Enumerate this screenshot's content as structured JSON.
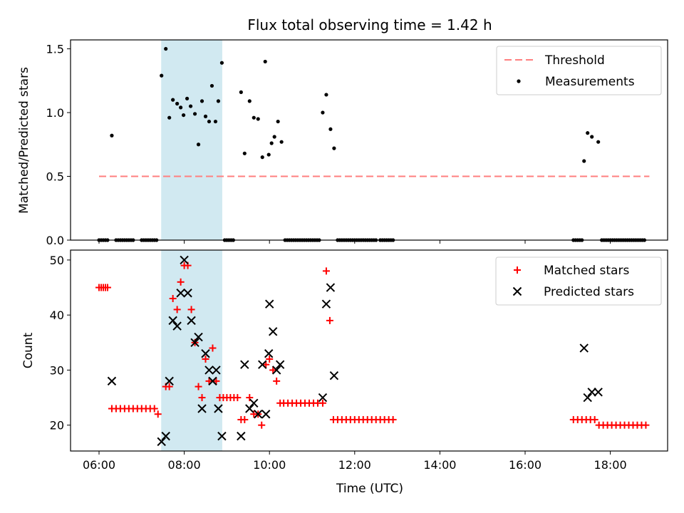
{
  "chart_data": {
    "title": "Flux total observing time = 1.42 h",
    "xlabel": "Time (UTC)",
    "x_tick_labels": [
      "06:00",
      "08:00",
      "10:00",
      "12:00",
      "14:00",
      "16:00",
      "18:00"
    ],
    "colors": {
      "threshold": "#ff7f7f",
      "measurements": "#000000",
      "matched": "#ff0000",
      "predicted": "#000000",
      "highlight_band": "#add8e6"
    },
    "charts": [
      {
        "type": "scatter",
        "ylabel": "Matched/Predicted stars",
        "ylim": [
          0,
          1.57
        ],
        "y_tick_labels": [
          "0.0",
          "0.5",
          "1.0",
          "1.5"
        ],
        "legend": [
          "Threshold",
          "Measurements"
        ],
        "legend_position": "top-right",
        "highlight": {
          "from": "07:28",
          "to": "08:53"
        },
        "threshold": {
          "value": 0.5,
          "from": "06:00",
          "to": "18:55"
        },
        "measurements": [
          [
            "06:00",
            0
          ],
          [
            "06:03",
            0
          ],
          [
            "06:06",
            0
          ],
          [
            "06:09",
            0
          ],
          [
            "06:12",
            0
          ],
          [
            "06:18",
            0.82
          ],
          [
            "06:24",
            0
          ],
          [
            "06:27",
            0
          ],
          [
            "06:30",
            0
          ],
          [
            "06:33",
            0
          ],
          [
            "06:36",
            0
          ],
          [
            "06:39",
            0
          ],
          [
            "06:42",
            0
          ],
          [
            "06:45",
            0
          ],
          [
            "06:48",
            0
          ],
          [
            "07:00",
            0
          ],
          [
            "07:03",
            0
          ],
          [
            "07:06",
            0
          ],
          [
            "07:09",
            0
          ],
          [
            "07:12",
            0
          ],
          [
            "07:15",
            0
          ],
          [
            "07:18",
            0
          ],
          [
            "07:21",
            0
          ],
          [
            "07:28",
            1.29
          ],
          [
            "07:34",
            1.5
          ],
          [
            "07:39",
            0.96
          ],
          [
            "07:44",
            1.1
          ],
          [
            "07:50",
            1.07
          ],
          [
            "07:55",
            1.04
          ],
          [
            "07:59",
            0.98
          ],
          [
            "08:04",
            1.11
          ],
          [
            "08:09",
            1.05
          ],
          [
            "08:15",
            0.99
          ],
          [
            "08:20",
            0.75
          ],
          [
            "08:25",
            1.09
          ],
          [
            "08:30",
            0.97
          ],
          [
            "08:35",
            0.93
          ],
          [
            "08:39",
            1.21
          ],
          [
            "08:44",
            0.93
          ],
          [
            "08:48",
            1.09
          ],
          [
            "08:53",
            1.39
          ],
          [
            "08:57",
            0
          ],
          [
            "09:00",
            0
          ],
          [
            "09:03",
            0
          ],
          [
            "09:06",
            0
          ],
          [
            "09:09",
            0
          ],
          [
            "09:20",
            1.16
          ],
          [
            "09:25",
            0.68
          ],
          [
            "09:32",
            1.09
          ],
          [
            "09:38",
            0.96
          ],
          [
            "09:44",
            0.95
          ],
          [
            "09:50",
            0.65
          ],
          [
            "09:54",
            1.4
          ],
          [
            "09:59",
            0.67
          ],
          [
            "10:03",
            0.76
          ],
          [
            "10:07",
            0.81
          ],
          [
            "10:12",
            0.93
          ],
          [
            "10:17",
            0.77
          ],
          [
            "10:22",
            0
          ],
          [
            "10:25",
            0
          ],
          [
            "10:28",
            0
          ],
          [
            "10:31",
            0
          ],
          [
            "10:34",
            0
          ],
          [
            "10:37",
            0
          ],
          [
            "10:40",
            0
          ],
          [
            "10:43",
            0
          ],
          [
            "10:46",
            0
          ],
          [
            "10:49",
            0
          ],
          [
            "10:52",
            0
          ],
          [
            "10:55",
            0
          ],
          [
            "10:58",
            0
          ],
          [
            "11:01",
            0
          ],
          [
            "11:04",
            0
          ],
          [
            "11:07",
            0
          ],
          [
            "11:10",
            0
          ],
          [
            "11:15",
            1.0
          ],
          [
            "11:20",
            1.14
          ],
          [
            "11:26",
            0.87
          ],
          [
            "11:31",
            0.72
          ],
          [
            "11:36",
            0
          ],
          [
            "11:39",
            0
          ],
          [
            "11:42",
            0
          ],
          [
            "11:45",
            0
          ],
          [
            "11:48",
            0
          ],
          [
            "11:51",
            0
          ],
          [
            "11:54",
            0
          ],
          [
            "11:57",
            0
          ],
          [
            "12:00",
            0
          ],
          [
            "12:03",
            0
          ],
          [
            "12:06",
            0
          ],
          [
            "12:09",
            0
          ],
          [
            "12:12",
            0
          ],
          [
            "12:15",
            0
          ],
          [
            "12:18",
            0
          ],
          [
            "12:21",
            0
          ],
          [
            "12:24",
            0
          ],
          [
            "12:27",
            0
          ],
          [
            "12:30",
            0
          ],
          [
            "12:36",
            0
          ],
          [
            "12:39",
            0
          ],
          [
            "12:42",
            0
          ],
          [
            "12:45",
            0
          ],
          [
            "12:48",
            0
          ],
          [
            "12:51",
            0
          ],
          [
            "12:54",
            0
          ],
          [
            "17:08",
            0
          ],
          [
            "17:11",
            0
          ],
          [
            "17:14",
            0
          ],
          [
            "17:17",
            0
          ],
          [
            "17:20",
            0
          ],
          [
            "17:23",
            0.62
          ],
          [
            "17:28",
            0.84
          ],
          [
            "17:34",
            0.81
          ],
          [
            "17:43",
            0.77
          ],
          [
            "17:48",
            0
          ],
          [
            "17:51",
            0
          ],
          [
            "17:54",
            0
          ],
          [
            "17:57",
            0
          ],
          [
            "18:00",
            0
          ],
          [
            "18:03",
            0
          ],
          [
            "18:06",
            0
          ],
          [
            "18:09",
            0
          ],
          [
            "18:12",
            0
          ],
          [
            "18:15",
            0
          ],
          [
            "18:18",
            0
          ],
          [
            "18:21",
            0
          ],
          [
            "18:24",
            0
          ],
          [
            "18:27",
            0
          ],
          [
            "18:30",
            0
          ],
          [
            "18:33",
            0
          ],
          [
            "18:36",
            0
          ],
          [
            "18:39",
            0
          ],
          [
            "18:42",
            0
          ],
          [
            "18:45",
            0
          ],
          [
            "18:48",
            0
          ]
        ]
      },
      {
        "type": "scatter",
        "ylabel": "Count",
        "ylim": [
          15.3,
          51.8
        ],
        "y_tick_labels": [
          "20",
          "30",
          "40",
          "50"
        ],
        "legend": [
          "Matched stars",
          "Predicted stars"
        ],
        "legend_position": "top-right",
        "highlight": {
          "from": "07:28",
          "to": "08:53"
        },
        "matched": [
          [
            "06:00",
            45
          ],
          [
            "06:03",
            45
          ],
          [
            "06:06",
            45
          ],
          [
            "06:09",
            45
          ],
          [
            "06:12",
            45
          ],
          [
            "06:18",
            23
          ],
          [
            "06:24",
            23
          ],
          [
            "06:30",
            23
          ],
          [
            "06:36",
            23
          ],
          [
            "06:42",
            23
          ],
          [
            "06:48",
            23
          ],
          [
            "06:54",
            23
          ],
          [
            "07:00",
            23
          ],
          [
            "07:06",
            23
          ],
          [
            "07:12",
            23
          ],
          [
            "07:18",
            23
          ],
          [
            "07:23",
            22
          ],
          [
            "07:34",
            27
          ],
          [
            "07:39",
            27
          ],
          [
            "07:44",
            43
          ],
          [
            "07:50",
            41
          ],
          [
            "07:55",
            46
          ],
          [
            "08:00",
            49
          ],
          [
            "08:05",
            49
          ],
          [
            "08:10",
            41
          ],
          [
            "08:15",
            35
          ],
          [
            "08:20",
            27
          ],
          [
            "08:25",
            25
          ],
          [
            "08:30",
            32
          ],
          [
            "08:35",
            28
          ],
          [
            "08:40",
            34
          ],
          [
            "08:45",
            28
          ],
          [
            "08:50",
            25
          ],
          [
            "08:55",
            25
          ],
          [
            "09:00",
            25
          ],
          [
            "09:05",
            25
          ],
          [
            "09:10",
            25
          ],
          [
            "09:15",
            25
          ],
          [
            "09:20",
            21
          ],
          [
            "09:25",
            21
          ],
          [
            "09:32",
            25
          ],
          [
            "09:38",
            22
          ],
          [
            "09:44",
            22
          ],
          [
            "09:49",
            20
          ],
          [
            "09:55",
            31
          ],
          [
            "10:00",
            32
          ],
          [
            "10:05",
            30
          ],
          [
            "10:10",
            28
          ],
          [
            "10:15",
            24
          ],
          [
            "10:20",
            24
          ],
          [
            "10:26",
            24
          ],
          [
            "10:32",
            24
          ],
          [
            "10:38",
            24
          ],
          [
            "10:44",
            24
          ],
          [
            "10:50",
            24
          ],
          [
            "10:56",
            24
          ],
          [
            "11:02",
            24
          ],
          [
            "11:08",
            24
          ],
          [
            "11:15",
            24
          ],
          [
            "11:20",
            48
          ],
          [
            "11:25",
            39
          ],
          [
            "11:30",
            21
          ],
          [
            "11:36",
            21
          ],
          [
            "11:42",
            21
          ],
          [
            "11:48",
            21
          ],
          [
            "11:54",
            21
          ],
          [
            "12:00",
            21
          ],
          [
            "12:06",
            21
          ],
          [
            "12:12",
            21
          ],
          [
            "12:18",
            21
          ],
          [
            "12:24",
            21
          ],
          [
            "12:30",
            21
          ],
          [
            "12:36",
            21
          ],
          [
            "12:42",
            21
          ],
          [
            "12:48",
            21
          ],
          [
            "12:54",
            21
          ],
          [
            "17:08",
            21
          ],
          [
            "17:14",
            21
          ],
          [
            "17:20",
            21
          ],
          [
            "17:26",
            21
          ],
          [
            "17:32",
            21
          ],
          [
            "17:38",
            21
          ],
          [
            "17:44",
            20
          ],
          [
            "17:50",
            20
          ],
          [
            "17:56",
            20
          ],
          [
            "18:02",
            20
          ],
          [
            "18:08",
            20
          ],
          [
            "18:14",
            20
          ],
          [
            "18:20",
            20
          ],
          [
            "18:26",
            20
          ],
          [
            "18:32",
            20
          ],
          [
            "18:38",
            20
          ],
          [
            "18:44",
            20
          ],
          [
            "18:50",
            20
          ]
        ],
        "predicted": [
          [
            "06:18",
            28
          ],
          [
            "07:28",
            17
          ],
          [
            "07:34",
            18
          ],
          [
            "07:39",
            28
          ],
          [
            "07:44",
            39
          ],
          [
            "07:50",
            38
          ],
          [
            "07:55",
            44
          ],
          [
            "08:00",
            50
          ],
          [
            "08:05",
            44
          ],
          [
            "08:10",
            39
          ],
          [
            "08:15",
            35
          ],
          [
            "08:20",
            36
          ],
          [
            "08:25",
            23
          ],
          [
            "08:30",
            33
          ],
          [
            "08:35",
            30
          ],
          [
            "08:40",
            28
          ],
          [
            "08:45",
            30
          ],
          [
            "08:48",
            23
          ],
          [
            "08:53",
            18
          ],
          [
            "09:20",
            18
          ],
          [
            "09:25",
            31
          ],
          [
            "09:32",
            23
          ],
          [
            "09:38",
            24
          ],
          [
            "09:44",
            22
          ],
          [
            "09:50",
            31
          ],
          [
            "09:55",
            22
          ],
          [
            "09:59",
            33
          ],
          [
            "10:00",
            42
          ],
          [
            "10:05",
            37
          ],
          [
            "10:10",
            30
          ],
          [
            "10:15",
            31
          ],
          [
            "11:15",
            25
          ],
          [
            "11:20",
            42
          ],
          [
            "11:26",
            45
          ],
          [
            "11:31",
            29
          ],
          [
            "17:23",
            34
          ],
          [
            "17:28",
            25
          ],
          [
            "17:34",
            26
          ],
          [
            "17:43",
            26
          ]
        ]
      }
    ]
  }
}
